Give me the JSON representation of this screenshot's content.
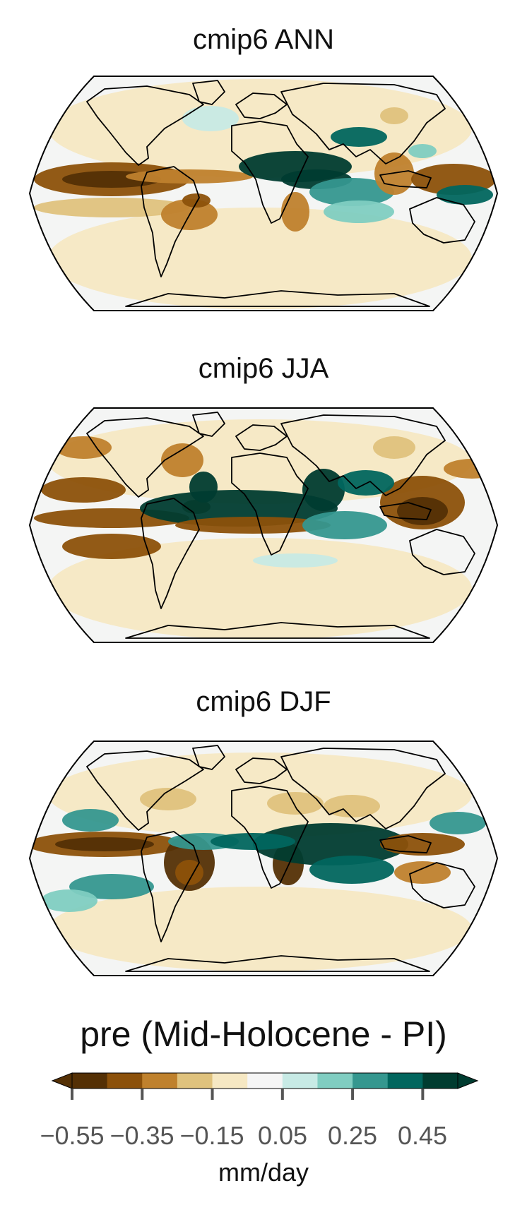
{
  "panels": [
    {
      "title": "cmip6 ANN"
    },
    {
      "title": "cmip6 JJA"
    },
    {
      "title": "cmip6 DJF"
    }
  ],
  "colorbar": {
    "title": "pre (Mid-Holocene - PI)",
    "units": "mm/day",
    "colors": [
      "#543005",
      "#8c510a",
      "#bf812d",
      "#dfc27d",
      "#f6e8c3",
      "#f5f5f5",
      "#c7eae5",
      "#80cdc1",
      "#35978f",
      "#01665e",
      "#003c30"
    ],
    "tick_labels": [
      "−0.55",
      "−0.35",
      "−0.15",
      "0.05",
      "0.25",
      "0.45"
    ]
  },
  "palette": {
    "ocean_base": "#f4f5f4",
    "coast": "#000000"
  }
}
